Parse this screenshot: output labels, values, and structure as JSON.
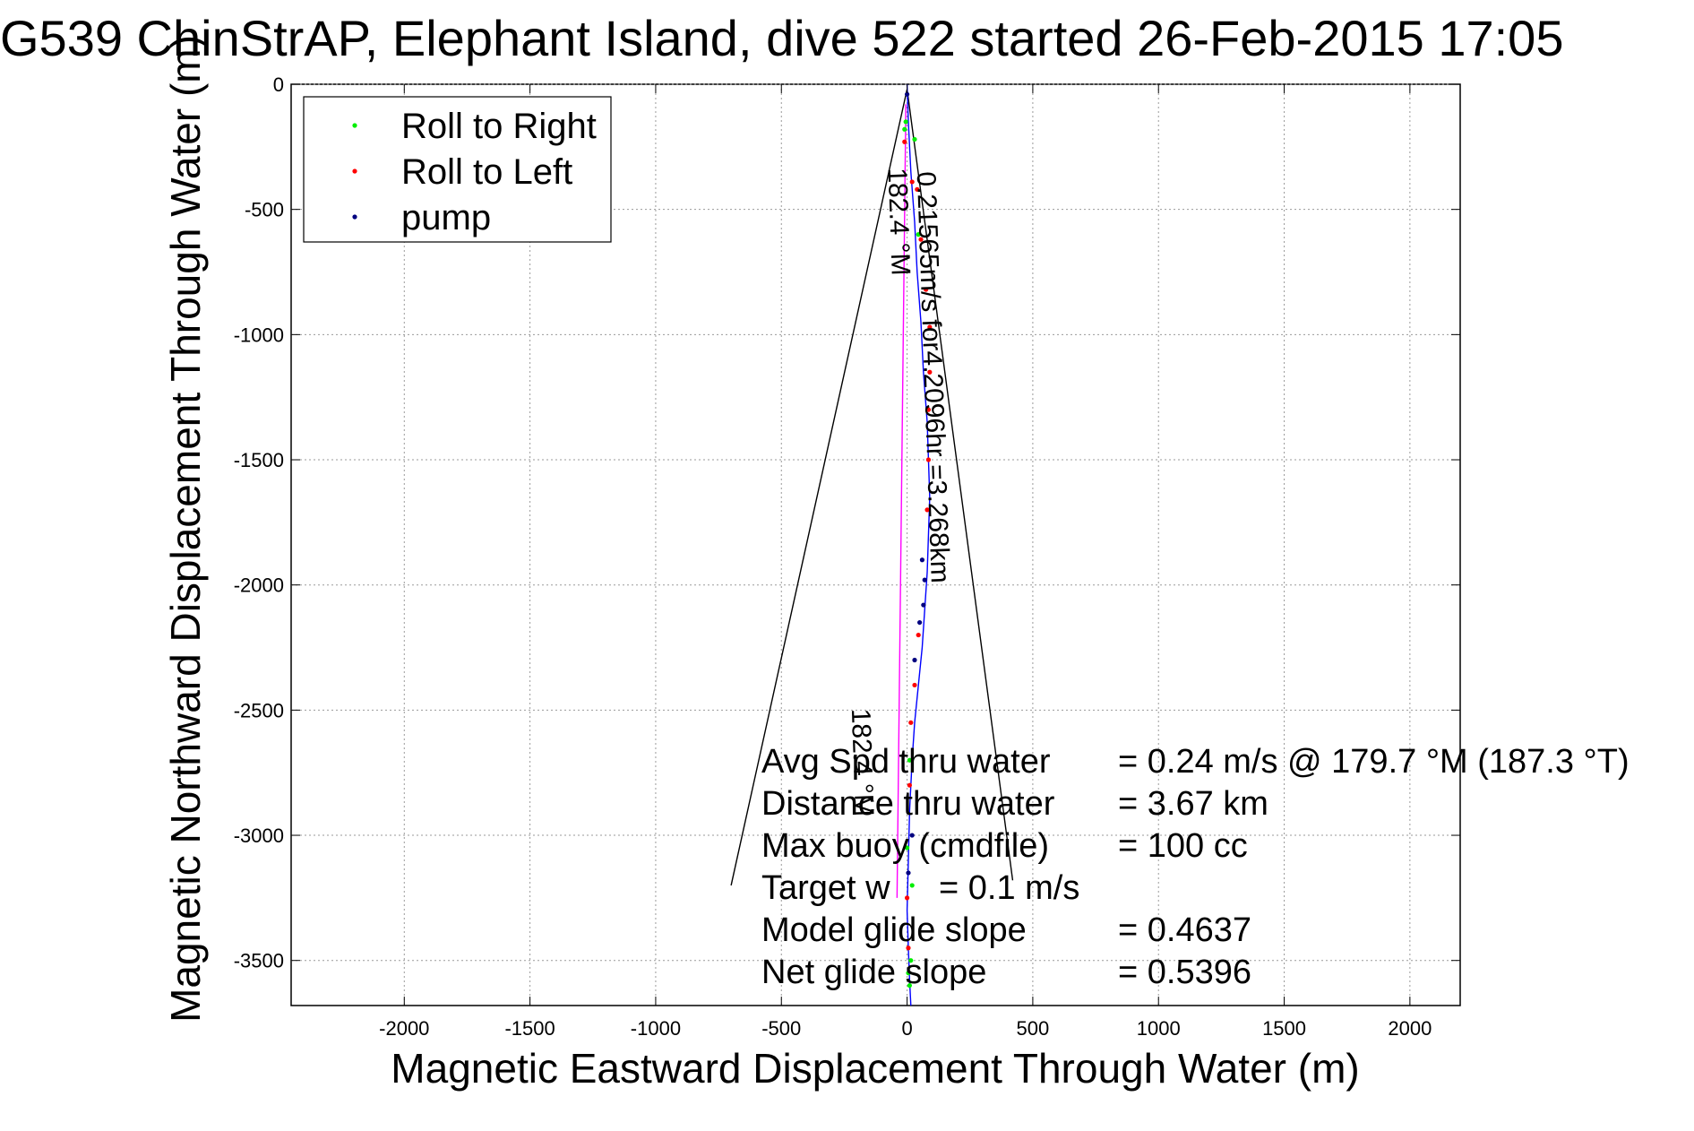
{
  "chart_data": {
    "type": "line",
    "title": "G539 ChinStrAP, Elephant Island, dive 522 started 26-Feb-2015 17:05",
    "xlabel": "Magnetic Eastward Displacement Through Water (m)",
    "ylabel": "Magnetic Northward Displacement Through Water (m)",
    "xlim": [
      -2450,
      2200
    ],
    "ylim": [
      -3680,
      0
    ],
    "xticks": [
      -2000,
      -1500,
      -1000,
      -500,
      0,
      500,
      1000,
      1500,
      2000
    ],
    "yticks": [
      0,
      -500,
      -1000,
      -1500,
      -2000,
      -2500,
      -3000,
      -3500
    ],
    "grid": true,
    "legend_position": "top-left",
    "legend": [
      {
        "label": "Roll to Right",
        "color": "#00ee00"
      },
      {
        "label": "Roll to Left",
        "color": "#ff0000"
      },
      {
        "label": "pump",
        "color": "#000080"
      }
    ],
    "series": [
      {
        "name": "track",
        "color": "#0000ff",
        "x": [
          0,
          5,
          15,
          30,
          40,
          55,
          65,
          80,
          85,
          90,
          85,
          80,
          70,
          60,
          45,
          30,
          20,
          10,
          5,
          0,
          5,
          10,
          15
        ],
        "y": [
          0,
          -150,
          -350,
          -550,
          -750,
          -950,
          -1150,
          -1350,
          -1500,
          -1650,
          -1800,
          -1950,
          -2100,
          -2250,
          -2400,
          -2550,
          -2700,
          -2900,
          -3100,
          -3300,
          -3450,
          -3580,
          -3680
        ]
      },
      {
        "name": "reference",
        "color": "#ff00ff",
        "x": [
          -5,
          -40
        ],
        "y": [
          -80,
          -3250
        ]
      }
    ],
    "point_series": [
      {
        "name": "Roll to Right",
        "color": "#00ee00",
        "x": [
          -5,
          -10,
          30,
          45,
          10,
          0,
          20,
          15,
          5,
          10
        ],
        "y": [
          -150,
          -180,
          -220,
          -600,
          -2700,
          -3050,
          -3200,
          -3500,
          -3550,
          -3600
        ]
      },
      {
        "name": "Roll to Left",
        "color": "#ff0000",
        "x": [
          -10,
          20,
          40,
          55,
          75,
          90,
          90,
          85,
          85,
          80,
          45,
          30,
          15,
          10,
          0,
          5
        ],
        "y": [
          -230,
          -390,
          -420,
          -620,
          -820,
          -970,
          -1150,
          -1300,
          -1500,
          -1700,
          -2200,
          -2400,
          -2550,
          -2800,
          -3250,
          -3450
        ]
      },
      {
        "name": "pump",
        "color": "#000080",
        "x": [
          0,
          60,
          70,
          65,
          50,
          30,
          20,
          5
        ],
        "y": [
          -40,
          -1900,
          -1980,
          -2080,
          -2150,
          -2300,
          -3000,
          -3150
        ]
      }
    ],
    "annotation_lines": [
      {
        "x": [
          -700,
          0,
          420
        ],
        "y": [
          -3200,
          -20,
          -3180
        ],
        "color": "#000000"
      }
    ],
    "rotated_annotations": [
      {
        "text": "0.21565m/s for4.2096hr =3.268km",
        "x": 40,
        "y": -350,
        "angle": 88,
        "size": 33
      },
      {
        "text": "182.4 °M",
        "x": -75,
        "y": -335,
        "angle": 88,
        "size": 30
      },
      {
        "text": "182.4 °M",
        "x": -220,
        "y": -2495,
        "angle": 88,
        "size": 30
      }
    ],
    "summary": [
      {
        "label": "Avg Spd thru water",
        "value": "=  0.24 m/s @ 179.7 °M (187.3 °T)"
      },
      {
        "label": "Distance thru water",
        "value": "=  3.67 km"
      },
      {
        "label": "Max buoy (cmdfile)",
        "value": "= 100 cc"
      },
      {
        "label": "Target w",
        "value": "= 0.1  m/s"
      },
      {
        "label": "Model glide slope",
        "value": "= 0.4637"
      },
      {
        "label": "Net glide slope",
        "value": "= 0.5396"
      }
    ]
  }
}
